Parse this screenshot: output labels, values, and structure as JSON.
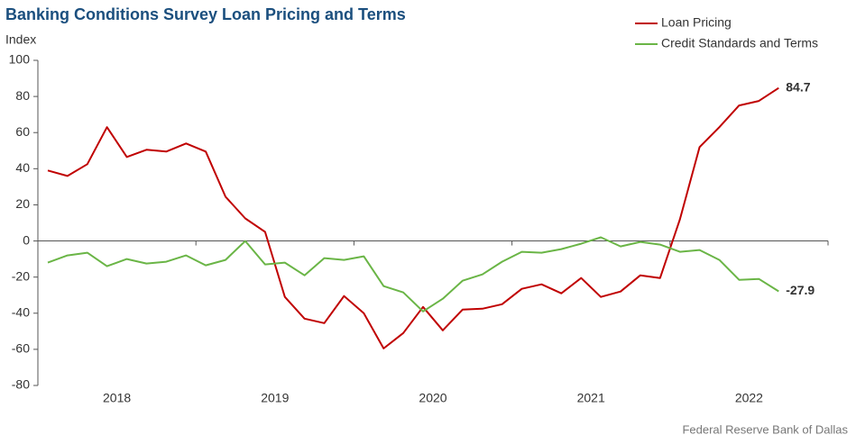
{
  "chart_data": {
    "type": "line",
    "title": "Banking Conditions Survey Loan Pricing and Terms",
    "y_label": "Index",
    "source": "Federal Reserve Bank of Dallas",
    "categories": [
      null,
      null,
      null,
      null,
      null,
      null,
      null,
      null,
      null,
      null,
      null,
      null,
      null,
      null,
      null,
      null,
      null,
      null,
      null,
      null,
      null,
      null,
      null,
      null,
      null,
      null,
      null,
      null,
      null,
      null,
      null,
      null,
      null,
      null,
      null,
      null,
      null,
      null
    ],
    "year_labels": [
      "2018",
      "2019",
      "2020",
      "2021",
      "2022"
    ],
    "ylim": [
      -80,
      100
    ],
    "yticks": [
      -80,
      -60,
      -40,
      -20,
      0,
      20,
      40,
      60,
      80,
      100
    ],
    "legend": "top-right",
    "series": [
      {
        "name": "Loan Pricing",
        "color": "#c00000",
        "values": [
          39,
          36,
          42.5,
          63,
          46.5,
          50.5,
          49.5,
          54,
          49.5,
          24.5,
          12.5,
          5,
          -31,
          -43,
          -45.5,
          -30.5,
          -40,
          -59.5,
          -51,
          -36.5,
          -49.5,
          -38,
          -37.5,
          -35,
          -26.5,
          -24,
          -29,
          -20.5,
          -31,
          -28,
          -19,
          -20.5,
          12,
          52,
          63,
          75,
          77.5,
          84.7
        ]
      },
      {
        "name": "Credit Standards and Terms",
        "color": "#6ab546",
        "values": [
          -12,
          -8,
          -6.5,
          -14,
          -10,
          -12.5,
          -11.5,
          -8,
          -13.5,
          -10.5,
          0,
          -13,
          -12,
          -19,
          -9.5,
          -10.5,
          -8.5,
          -25,
          -28.5,
          -39,
          -32,
          -22,
          -18.5,
          -11.5,
          -6,
          -6.5,
          -4.5,
          -1.5,
          2,
          -3,
          -0.5,
          -2,
          -6,
          -5,
          -10.5,
          -21.5,
          -21,
          -27.9
        ]
      }
    ]
  }
}
